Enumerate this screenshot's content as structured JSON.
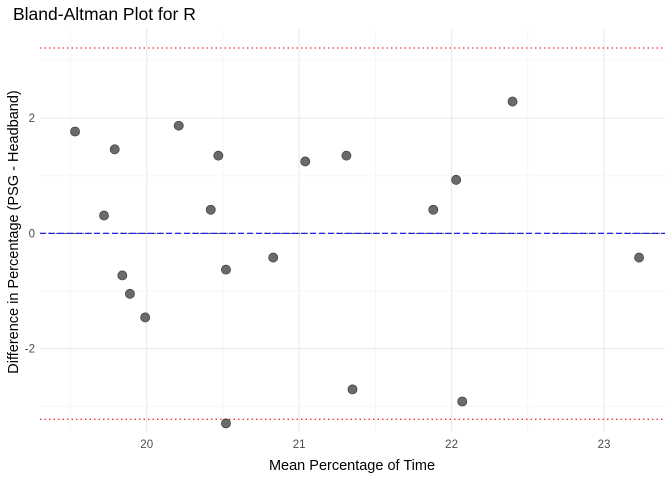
{
  "chart_data": {
    "type": "scatter",
    "title": "Bland-Altman Plot for R",
    "xlabel": "Mean Percentage of Time",
    "ylabel": "Difference in Percentage (PSG - Headband)",
    "xlim": [
      19.3,
      23.4
    ],
    "ylim": [
      -3.45,
      3.55
    ],
    "x_ticks": [
      20,
      21,
      22,
      23
    ],
    "x_tick_labels": [
      "20",
      "21",
      "22",
      "23"
    ],
    "y_ticks": [
      -2,
      0,
      2
    ],
    "y_tick_labels": [
      "-2",
      "0",
      "2"
    ],
    "grid": true,
    "points": [
      {
        "x": 19.53,
        "y": 1.77
      },
      {
        "x": 19.72,
        "y": 0.31
      },
      {
        "x": 19.79,
        "y": 1.46
      },
      {
        "x": 19.84,
        "y": -0.73
      },
      {
        "x": 19.89,
        "y": -1.05
      },
      {
        "x": 19.99,
        "y": -1.46
      },
      {
        "x": 20.21,
        "y": 1.87
      },
      {
        "x": 20.42,
        "y": 0.41
      },
      {
        "x": 20.47,
        "y": 1.35
      },
      {
        "x": 20.52,
        "y": -0.63
      },
      {
        "x": 20.52,
        "y": -3.3
      },
      {
        "x": 20.83,
        "y": -0.42
      },
      {
        "x": 21.04,
        "y": 1.25
      },
      {
        "x": 21.31,
        "y": 1.35
      },
      {
        "x": 21.35,
        "y": -2.71
      },
      {
        "x": 21.88,
        "y": 0.41
      },
      {
        "x": 22.03,
        "y": 0.93
      },
      {
        "x": 22.07,
        "y": -2.92
      },
      {
        "x": 22.4,
        "y": 2.29
      },
      {
        "x": 23.23,
        "y": -0.42
      }
    ],
    "reference_lines": [
      {
        "role": "mean-difference",
        "y": 0.0,
        "style": "dashed",
        "color": "#2222ee"
      },
      {
        "role": "zero-line",
        "y": 0.0,
        "style": "dashed",
        "color": "#555555"
      },
      {
        "role": "upper-limit-of-agreement",
        "y": 3.22,
        "style": "dotted",
        "color": "#ee3333"
      },
      {
        "role": "lower-limit-of-agreement",
        "y": -3.23,
        "style": "dotted",
        "color": "#ee3333"
      }
    ],
    "colors": {
      "point_fill": "#5a5a5a",
      "point_stroke": "#333333",
      "grid_major": "#ebebeb",
      "grid_minor": "#f5f5f5",
      "tick_text": "#4d4d4d"
    }
  }
}
